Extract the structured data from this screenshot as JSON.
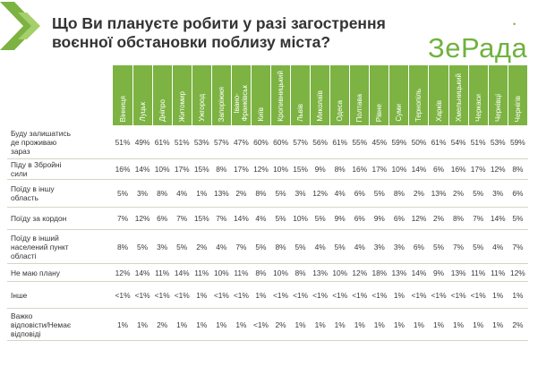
{
  "title": "Що Ви плануєте робити у разі загострення воєнної обстановки поблизу міста?",
  "logo": "ЗеРада",
  "colors": {
    "accent": "#7cb342",
    "header_text": "#ffffff"
  },
  "columns": [
    "Вінниця",
    "Луцьк",
    "Дніпро",
    "Житомир",
    "Ужгород",
    "Запоріжжя",
    "Івано-\nФранківськ",
    "Київ",
    "Кропивницький",
    "Львів",
    "Миколаїв",
    "Одеса",
    "Полтава",
    "Рівне",
    "Суми",
    "Тернопіль",
    "Харків",
    "Хмельницький",
    "Черкаси",
    "Чернівці",
    "Чернігів"
  ],
  "rows": [
    {
      "label": "Буду залишатись\nде проживаю\nзараз",
      "values": [
        "51%",
        "49%",
        "61%",
        "51%",
        "53%",
        "57%",
        "47%",
        "60%",
        "60%",
        "57%",
        "56%",
        "61%",
        "55%",
        "45%",
        "59%",
        "50%",
        "61%",
        "54%",
        "51%",
        "53%",
        "59%"
      ]
    },
    {
      "label": "Піду в Збройні\nсили",
      "values": [
        "16%",
        "14%",
        "10%",
        "17%",
        "15%",
        "8%",
        "17%",
        "12%",
        "10%",
        "15%",
        "9%",
        "8%",
        "16%",
        "17%",
        "10%",
        "14%",
        "6%",
        "16%",
        "17%",
        "12%",
        "8%"
      ]
    },
    {
      "label": "Поїду в іншу\nобласть",
      "values": [
        "5%",
        "3%",
        "8%",
        "4%",
        "1%",
        "13%",
        "2%",
        "8%",
        "5%",
        "3%",
        "12%",
        "4%",
        "6%",
        "5%",
        "8%",
        "2%",
        "13%",
        "2%",
        "5%",
        "3%",
        "6%"
      ]
    },
    {
      "label": "Поїду за кордон",
      "values": [
        "7%",
        "12%",
        "6%",
        "7%",
        "15%",
        "7%",
        "14%",
        "4%",
        "5%",
        "10%",
        "5%",
        "9%",
        "6%",
        "9%",
        "6%",
        "12%",
        "2%",
        "8%",
        "7%",
        "14%",
        "5%"
      ]
    },
    {
      "label": "Поїду в інший\nнаселений пункт\nобласті",
      "values": [
        "8%",
        "5%",
        "3%",
        "5%",
        "2%",
        "4%",
        "7%",
        "5%",
        "8%",
        "5%",
        "4%",
        "5%",
        "4%",
        "3%",
        "3%",
        "6%",
        "5%",
        "7%",
        "5%",
        "4%",
        "7%"
      ]
    },
    {
      "label": "Не маю плану",
      "values": [
        "12%",
        "14%",
        "11%",
        "14%",
        "11%",
        "10%",
        "11%",
        "8%",
        "10%",
        "8%",
        "13%",
        "10%",
        "12%",
        "18%",
        "13%",
        "14%",
        "9%",
        "13%",
        "11%",
        "11%",
        "12%"
      ]
    },
    {
      "label": "Інше",
      "values": [
        "<1%",
        "<1%",
        "<1%",
        "<1%",
        "1%",
        "<1%",
        "<1%",
        "1%",
        "<1%",
        "<1%",
        "<1%",
        "<1%",
        "<1%",
        "<1%",
        "1%",
        "<1%",
        "<1%",
        "<1%",
        "<1%",
        "1%",
        "1%"
      ]
    },
    {
      "label": "Важко\nвідповісти/Немає\nвідповіді",
      "values": [
        "1%",
        "1%",
        "2%",
        "1%",
        "1%",
        "1%",
        "1%",
        "<1%",
        "2%",
        "1%",
        "1%",
        "1%",
        "1%",
        "1%",
        "1%",
        "1%",
        "1%",
        "1%",
        "1%",
        "1%",
        "2%"
      ]
    }
  ]
}
